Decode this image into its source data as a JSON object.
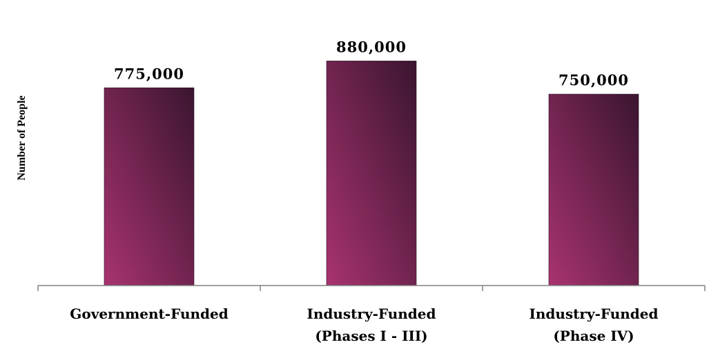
{
  "chart_data": {
    "type": "bar",
    "title": "",
    "xlabel": "",
    "ylabel": "Number of People",
    "categories": [
      [
        "Government-Funded"
      ],
      [
        "Industry-Funded",
        "(Phases I - III)"
      ],
      [
        "Industry-Funded",
        "(Phase IV)"
      ]
    ],
    "values": [
      775000,
      880000,
      750000
    ],
    "data_labels": [
      "775,000",
      "880,000",
      "750,000"
    ],
    "ylim": [
      0,
      1000000
    ],
    "grid": false,
    "legend": "none",
    "bar_color_light": "#a8336f",
    "bar_color_dark": "#3a1530",
    "axis_color": "#808080"
  }
}
